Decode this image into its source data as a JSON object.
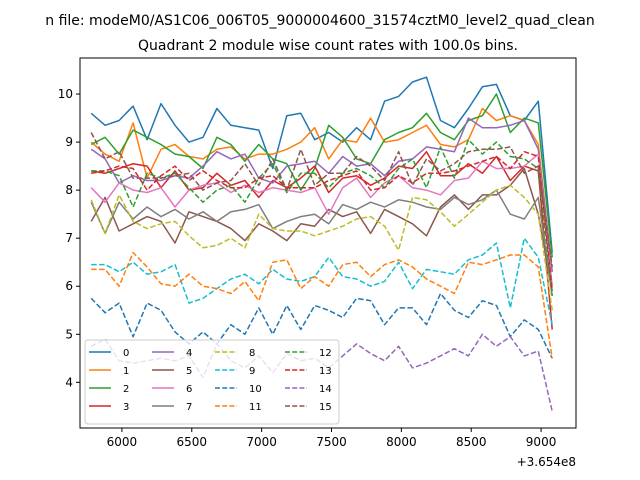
{
  "chart_data": {
    "type": "line",
    "suptitle": "n file: modeM0/AS1C06_006T05_9000004600_31574cztM0_level2_quad_clean",
    "title": "Quadrant 2 module wise count rates with 100.0s bins.",
    "xlabel": "",
    "ylabel": "",
    "x_offset_text": "+3.654e8",
    "xlim": [
      5700,
      9250
    ],
    "ylim": [
      3.05,
      10.75
    ],
    "xticks": [
      6000,
      6500,
      7000,
      7500,
      8000,
      8500,
      9000
    ],
    "xtick_labels": [
      "6000",
      "6500",
      "7000",
      "7500",
      "8000",
      "8500",
      "9000"
    ],
    "yticks": [
      4,
      5,
      6,
      7,
      8,
      9,
      10
    ],
    "ytick_labels": [
      "4",
      "5",
      "6",
      "7",
      "8",
      "9",
      "10"
    ],
    "legend_position": "lower-left",
    "grid": false,
    "x": [
      5780,
      5880,
      5980,
      6080,
      6180,
      6280,
      6380,
      6480,
      6580,
      6680,
      6780,
      6880,
      6980,
      7080,
      7180,
      7280,
      7380,
      7480,
      7580,
      7680,
      7780,
      7880,
      7980,
      8080,
      8180,
      8280,
      8380,
      8480,
      8580,
      8680,
      8780,
      8880,
      8980,
      9080
    ],
    "series": [
      {
        "name": "0",
        "style": "solid",
        "color": "#1f77b4",
        "values": [
          9.6,
          9.35,
          9.45,
          9.75,
          9.05,
          9.8,
          9.35,
          9.0,
          9.1,
          9.7,
          9.35,
          9.3,
          9.25,
          8.45,
          9.55,
          9.6,
          9.05,
          9.2,
          9.0,
          9.3,
          9.05,
          9.85,
          9.95,
          10.25,
          10.35,
          9.45,
          9.3,
          9.7,
          10.15,
          10.2,
          9.55,
          9.45,
          9.85,
          6.7
        ]
      },
      {
        "name": "1",
        "style": "solid",
        "color": "#ff7f0e",
        "values": [
          9.0,
          8.75,
          8.6,
          9.4,
          8.25,
          8.85,
          8.95,
          8.7,
          8.65,
          8.85,
          8.9,
          8.65,
          8.75,
          8.75,
          8.85,
          9.0,
          9.3,
          8.65,
          9.05,
          9.0,
          9.5,
          9.0,
          9.05,
          9.2,
          9.35,
          8.95,
          8.9,
          9.05,
          9.7,
          9.45,
          9.55,
          9.45,
          8.95,
          6.3
        ]
      },
      {
        "name": "2",
        "style": "solid",
        "color": "#2ca02c",
        "values": [
          8.95,
          9.1,
          8.75,
          9.25,
          9.1,
          8.95,
          8.75,
          8.7,
          8.45,
          9.1,
          8.95,
          8.6,
          8.95,
          8.65,
          8.55,
          8.0,
          8.45,
          9.35,
          9.1,
          8.65,
          8.55,
          9.05,
          9.2,
          9.3,
          9.6,
          9.2,
          9.05,
          9.45,
          9.55,
          10.0,
          9.2,
          9.5,
          9.4,
          6.6
        ]
      },
      {
        "name": "3",
        "style": "solid",
        "color": "#d62728",
        "values": [
          8.4,
          8.35,
          8.45,
          8.55,
          8.5,
          8.05,
          8.4,
          8.0,
          8.05,
          8.35,
          8.1,
          8.2,
          7.85,
          8.2,
          8.05,
          8.25,
          8.5,
          7.95,
          8.25,
          8.3,
          8.1,
          8.25,
          8.5,
          8.45,
          8.8,
          8.3,
          8.3,
          8.55,
          8.35,
          8.7,
          8.2,
          8.5,
          8.4,
          5.1
        ]
      },
      {
        "name": "4",
        "style": "solid",
        "color": "#9467bd",
        "values": [
          8.85,
          8.65,
          8.15,
          8.3,
          8.2,
          8.2,
          8.3,
          8.25,
          8.5,
          8.8,
          8.65,
          8.75,
          8.25,
          8.15,
          8.5,
          8.55,
          8.6,
          8.35,
          8.7,
          8.5,
          8.55,
          8.3,
          8.6,
          8.65,
          8.9,
          8.85,
          8.8,
          9.5,
          9.3,
          9.3,
          9.35,
          9.45,
          8.85,
          6.3
        ]
      },
      {
        "name": "5",
        "style": "solid",
        "color": "#8c564b",
        "values": [
          7.35,
          7.85,
          7.15,
          7.3,
          7.45,
          7.35,
          6.9,
          7.55,
          7.45,
          7.35,
          7.2,
          6.95,
          7.3,
          7.15,
          6.95,
          7.3,
          7.25,
          7.6,
          7.45,
          7.55,
          7.1,
          7.6,
          7.45,
          7.3,
          7.05,
          7.65,
          7.9,
          7.6,
          7.9,
          7.9,
          8.1,
          8.45,
          7.5,
          5.9
        ]
      },
      {
        "name": "6",
        "style": "solid",
        "color": "#e377c2",
        "values": [
          8.05,
          7.75,
          8.15,
          8.0,
          7.95,
          8.05,
          7.65,
          8.0,
          8.1,
          8.15,
          7.95,
          8.1,
          7.95,
          8.05,
          8.0,
          7.95,
          8.05,
          7.5,
          8.05,
          8.25,
          7.85,
          8.15,
          8.3,
          8.05,
          8.0,
          7.9,
          8.2,
          8.25,
          8.6,
          8.45,
          8.45,
          8.5,
          8.75,
          6.0
        ]
      },
      {
        "name": "7",
        "style": "solid",
        "color": "#7f7f7f",
        "values": [
          7.75,
          7.1,
          7.75,
          7.4,
          7.65,
          7.45,
          7.6,
          7.4,
          7.55,
          7.35,
          7.55,
          7.6,
          7.7,
          7.2,
          7.35,
          7.45,
          7.5,
          7.3,
          7.7,
          7.6,
          7.75,
          7.65,
          7.8,
          7.75,
          7.65,
          7.6,
          7.85,
          7.7,
          7.8,
          8.0,
          7.5,
          7.4,
          7.85,
          5.8
        ]
      },
      {
        "name": "8",
        "style": "dashed",
        "color": "#bcbd22",
        "values": [
          7.8,
          7.1,
          7.9,
          7.35,
          7.2,
          7.3,
          7.35,
          7.05,
          6.8,
          6.85,
          7.0,
          6.8,
          7.5,
          7.2,
          7.15,
          7.15,
          7.05,
          7.15,
          7.25,
          7.4,
          7.45,
          7.25,
          6.75,
          7.85,
          7.8,
          7.55,
          7.25,
          7.5,
          7.75,
          8.0,
          8.1,
          7.85,
          7.5,
          5.5
        ]
      },
      {
        "name": "9",
        "style": "dashed",
        "color": "#17becf",
        "values": [
          6.45,
          6.45,
          6.3,
          6.5,
          6.25,
          6.3,
          6.45,
          5.65,
          5.75,
          5.95,
          6.15,
          6.25,
          6.05,
          6.35,
          6.15,
          6.1,
          6.2,
          6.6,
          6.2,
          6.15,
          6.0,
          6.1,
          6.5,
          5.95,
          6.35,
          6.3,
          6.25,
          6.55,
          6.65,
          6.9,
          5.55,
          7.0,
          6.6,
          5.2
        ]
      },
      {
        "name": "10",
        "style": "dashed",
        "color": "#1f77b4",
        "values": [
          5.75,
          5.45,
          5.65,
          4.95,
          5.65,
          5.5,
          5.05,
          4.8,
          5.05,
          4.8,
          5.2,
          5.0,
          5.55,
          5.0,
          5.6,
          5.1,
          5.6,
          5.5,
          5.35,
          5.75,
          5.7,
          5.2,
          5.55,
          5.55,
          5.2,
          5.85,
          5.5,
          5.35,
          5.7,
          5.6,
          4.95,
          5.3,
          5.1,
          4.5
        ]
      },
      {
        "name": "11",
        "style": "dashed",
        "color": "#ff7f0e",
        "values": [
          6.35,
          6.35,
          6.0,
          6.7,
          6.4,
          6.05,
          6.0,
          6.25,
          6.0,
          5.95,
          5.85,
          6.1,
          5.7,
          6.5,
          6.55,
          5.95,
          6.2,
          6.0,
          6.45,
          6.5,
          6.2,
          6.45,
          6.55,
          6.4,
          6.15,
          6.0,
          5.85,
          6.5,
          6.45,
          6.55,
          6.65,
          6.65,
          6.4,
          4.5
        ]
      },
      {
        "name": "12",
        "style": "dashed",
        "color": "#2ca02c",
        "values": [
          8.4,
          8.4,
          8.3,
          7.65,
          8.35,
          8.25,
          8.35,
          8.05,
          7.75,
          8.0,
          8.1,
          7.75,
          8.25,
          8.55,
          7.95,
          8.35,
          8.35,
          8.05,
          8.35,
          8.45,
          8.3,
          8.05,
          8.45,
          8.65,
          8.05,
          8.9,
          8.25,
          9.05,
          8.75,
          9.0,
          8.7,
          8.65,
          8.45,
          5.8
        ]
      },
      {
        "name": "13",
        "style": "dashed",
        "color": "#d62728",
        "values": [
          8.35,
          8.4,
          8.5,
          8.45,
          8.0,
          8.3,
          8.5,
          8.2,
          8.4,
          8.2,
          8.05,
          8.05,
          8.25,
          8.3,
          8.05,
          8.05,
          8.05,
          8.2,
          8.3,
          8.4,
          8.0,
          8.05,
          8.3,
          8.15,
          8.35,
          8.35,
          8.4,
          8.5,
          8.6,
          8.7,
          8.45,
          8.8,
          8.7,
          5.9
        ]
      },
      {
        "name": "14",
        "style": "dashed",
        "color": "#9467bd",
        "values": [
          4.75,
          4.9,
          4.45,
          4.4,
          4.45,
          4.5,
          4.45,
          4.55,
          4.1,
          4.8,
          4.45,
          4.3,
          4.55,
          4.2,
          4.6,
          4.45,
          4.5,
          4.3,
          4.55,
          4.8,
          4.6,
          4.45,
          4.75,
          4.3,
          4.4,
          4.55,
          4.7,
          4.55,
          5.0,
          4.75,
          4.95,
          4.55,
          4.65,
          3.4
        ]
      },
      {
        "name": "15",
        "style": "dashed",
        "color": "#8c564b",
        "values": [
          9.2,
          8.65,
          8.8,
          8.25,
          8.25,
          8.25,
          8.3,
          8.35,
          8.0,
          8.15,
          8.2,
          8.55,
          8.1,
          8.65,
          8.0,
          8.85,
          8.1,
          8.35,
          8.35,
          8.7,
          8.5,
          8.2,
          8.8,
          8.1,
          8.65,
          8.4,
          8.55,
          8.8,
          8.85,
          8.85,
          8.9,
          8.35,
          8.5,
          6.4
        ]
      }
    ]
  }
}
